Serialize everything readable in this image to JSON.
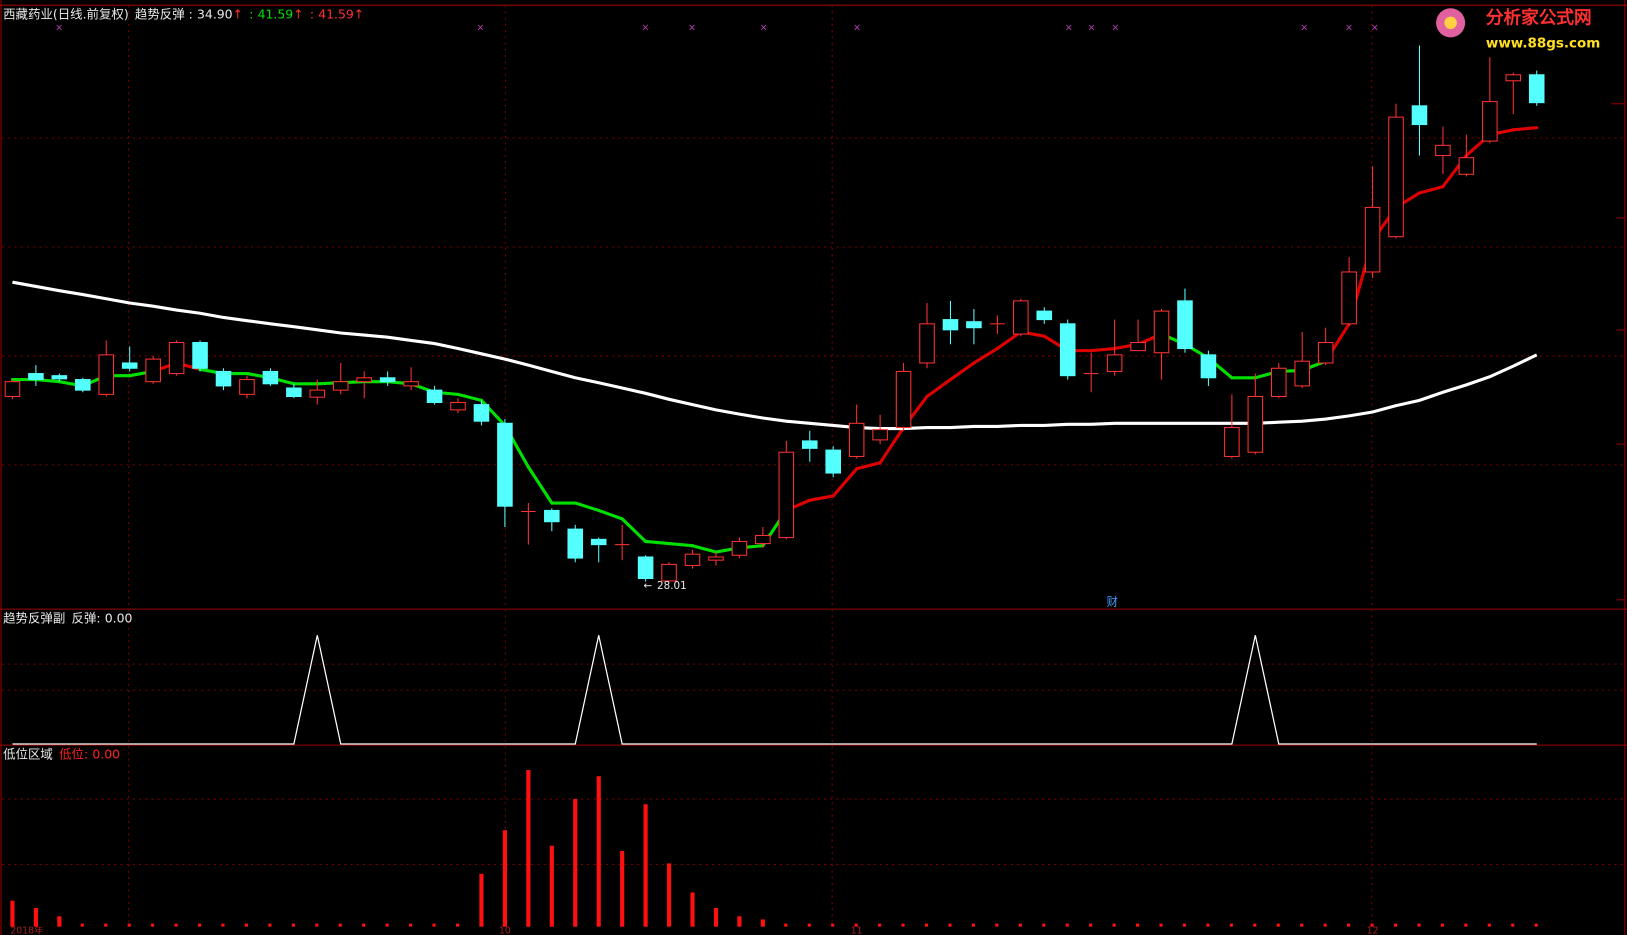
{
  "logo": {
    "name": "分析家公式网",
    "url": "www.88gs.com"
  },
  "chart_data": [
    {
      "type": "candlestick",
      "title": "西藏药业(日线.前复权)",
      "indicator": "趋势反弹 :",
      "separator": ":",
      "arrow": "↑",
      "header_values": [
        "34.90",
        "41.59",
        "41.59"
      ],
      "header_colors": [
        "#e8e8e8",
        "#00e000",
        "#ff3030"
      ],
      "annotation": "财",
      "categories": [
        "2018年",
        null,
        null,
        null,
        null,
        null,
        null,
        null,
        null,
        null,
        null,
        null,
        null,
        null,
        null,
        null,
        null,
        null,
        null,
        null,
        null,
        "10",
        null,
        null,
        null,
        null,
        null,
        null,
        null,
        null,
        null,
        null,
        null,
        null,
        null,
        null,
        "11",
        null,
        null,
        null,
        null,
        null,
        null,
        null,
        null,
        null,
        null,
        null,
        null,
        null,
        null,
        null,
        null,
        null,
        null,
        null,
        null,
        null,
        "12",
        null,
        null,
        null,
        null,
        null,
        null,
        null
      ],
      "ylim": [
        27.29,
        44.5
      ],
      "up_color": "#ff3232",
      "down_color": "#54ffff",
      "open": [
        33.26,
        33.91,
        33.85,
        33.74,
        33.32,
        34.21,
        33.68,
        33.91,
        34.79,
        33.97,
        33.32,
        33.97,
        33.5,
        33.24,
        33.44,
        33.68,
        33.79,
        33.56,
        33.44,
        32.88,
        33.03,
        32.5,
        30.0,
        30.03,
        29.5,
        29.21,
        29.06,
        28.71,
        28.03,
        28.47,
        28.62,
        28.76,
        29.09,
        29.26,
        32.0,
        31.74,
        31.56,
        32.03,
        32.38,
        34.21,
        35.44,
        35.38,
        35.32,
        35.03,
        35.68,
        35.32,
        33.91,
        33.97,
        34.56,
        34.5,
        35.97,
        34.44,
        31.56,
        31.68,
        33.26,
        33.56,
        34.21,
        35.32,
        36.79,
        37.79,
        41.5,
        40.09,
        39.56,
        40.5,
        42.21,
        42.38
      ],
      "close": [
        33.68,
        33.74,
        33.76,
        33.44,
        34.44,
        34.06,
        34.32,
        34.79,
        34.06,
        33.56,
        33.74,
        33.62,
        33.26,
        33.44,
        33.68,
        33.79,
        33.68,
        33.68,
        33.09,
        33.09,
        32.56,
        30.15,
        30.0,
        29.71,
        28.68,
        29.06,
        29.06,
        28.1,
        28.5,
        28.79,
        28.71,
        29.15,
        29.32,
        31.68,
        31.79,
        31.09,
        32.5,
        32.32,
        33.97,
        35.32,
        35.15,
        35.21,
        35.32,
        35.97,
        35.44,
        33.85,
        33.91,
        34.44,
        34.79,
        35.68,
        34.62,
        33.79,
        32.38,
        33.26,
        34.06,
        34.26,
        34.79,
        36.79,
        38.62,
        41.18,
        40.97,
        40.38,
        40.03,
        41.62,
        42.38,
        41.59
      ],
      "high": [
        33.74,
        34.15,
        33.91,
        33.79,
        34.85,
        34.68,
        34.41,
        34.85,
        34.85,
        34.06,
        33.85,
        34.06,
        33.62,
        33.74,
        34.21,
        33.97,
        33.97,
        34.09,
        33.56,
        33.21,
        33.15,
        32.62,
        30.24,
        30.09,
        29.62,
        29.26,
        29.62,
        28.76,
        28.56,
        28.91,
        28.85,
        29.26,
        29.56,
        32.0,
        32.29,
        31.85,
        33.03,
        32.74,
        34.21,
        35.91,
        35.97,
        35.74,
        35.56,
        36.03,
        35.79,
        35.44,
        34.5,
        35.44,
        35.44,
        35.74,
        36.32,
        34.56,
        33.32,
        33.91,
        34.21,
        35.09,
        35.21,
        37.21,
        39.79,
        41.56,
        43.21,
        40.91,
        40.68,
        42.88,
        42.44,
        42.5
      ],
      "low": [
        33.18,
        33.56,
        33.68,
        33.38,
        33.26,
        33.97,
        33.62,
        33.85,
        33.97,
        33.44,
        33.21,
        33.56,
        33.21,
        33.03,
        33.32,
        33.21,
        33.56,
        33.44,
        33.03,
        32.79,
        32.44,
        29.56,
        29.06,
        29.44,
        28.56,
        28.56,
        28.62,
        28.01,
        28.05,
        28.38,
        28.47,
        28.68,
        28.97,
        29.21,
        31.41,
        30.97,
        31.5,
        31.91,
        32.29,
        34.06,
        34.74,
        34.74,
        35.03,
        34.97,
        35.32,
        33.74,
        33.38,
        33.85,
        34.56,
        33.74,
        34.5,
        33.56,
        31.5,
        31.62,
        33.21,
        33.5,
        34.15,
        35.26,
        36.62,
        37.74,
        40.09,
        39.56,
        39.5,
        40.44,
        41.26,
        41.5
      ],
      "series": [
        {
          "values": [
            33.74,
            33.74,
            33.68,
            33.56,
            33.85,
            33.85,
            33.97,
            34.21,
            34.03,
            33.91,
            33.91,
            33.79,
            33.62,
            33.62,
            33.65,
            33.68,
            33.68,
            33.62,
            33.38,
            33.32,
            33.15,
            32.44,
            31.26,
            30.24,
            30.24,
            30.03,
            29.79,
            29.15,
            29.09,
            29.03,
            28.85,
            28.97,
            29.03,
            30.03,
            30.32,
            30.44,
            31.21,
            31.38,
            32.38,
            33.26,
            33.74,
            34.21,
            34.62,
            35.09,
            34.97,
            34.56,
            34.56,
            34.62,
            34.74,
            35.03,
            34.74,
            34.35,
            33.79,
            33.79,
            33.97,
            34.0,
            34.26,
            35.32,
            37.68,
            38.62,
            39.03,
            39.21,
            40.09,
            40.68,
            40.82,
            40.88
          ],
          "colors": [
            "#00e000",
            "#00e000",
            "#00e000",
            "#00e000",
            "#00e000",
            "#00e000",
            "#00e000",
            "#e00000",
            "#e00000",
            "#00e000",
            "#00e000",
            "#00e000",
            "#00e000",
            "#00e000",
            "#00e000",
            "#00e000",
            "#00e000",
            "#00e000",
            "#00e000",
            "#00e000",
            "#00e000",
            "#00e000",
            "#00e000",
            "#00e000",
            "#00e000",
            "#00e000",
            "#00e000",
            "#00e000",
            "#00e000",
            "#00e000",
            "#00e000",
            "#00e000",
            "#00e000",
            "#00e000",
            "#e00000",
            "#e00000",
            "#e00000",
            "#e00000",
            "#e00000",
            "#e00000",
            "#e00000",
            "#e00000",
            "#e00000",
            "#e00000",
            "#e00000",
            "#e00000",
            "#e00000",
            "#e00000",
            "#e00000",
            "#e00000",
            "#00e000",
            "#00e000",
            "#00e000",
            "#00e000",
            "#00e000",
            "#00e000",
            "#00e000",
            "#e00000",
            "#e00000",
            "#e00000",
            "#e00000",
            "#e00000",
            "#e00000",
            "#e00000",
            "#e00000",
            "#e00000"
          ]
        },
        {
          "color": "#ffffff",
          "values": [
            36.5,
            36.38,
            36.26,
            36.15,
            36.03,
            35.91,
            35.82,
            35.71,
            35.62,
            35.5,
            35.41,
            35.32,
            35.24,
            35.15,
            35.06,
            35.0,
            34.94,
            34.85,
            34.76,
            34.62,
            34.47,
            34.32,
            34.15,
            33.97,
            33.79,
            33.65,
            33.5,
            33.35,
            33.18,
            33.03,
            32.88,
            32.76,
            32.65,
            32.56,
            32.5,
            32.44,
            32.38,
            32.35,
            32.35,
            32.38,
            32.38,
            32.41,
            32.41,
            32.44,
            32.44,
            32.47,
            32.47,
            32.5,
            32.5,
            32.5,
            32.5,
            32.5,
            32.5,
            32.5,
            32.53,
            32.56,
            32.62,
            32.71,
            32.82,
            33.0,
            33.15,
            33.38,
            33.59,
            33.82,
            34.12,
            34.44
          ]
        }
      ]
    },
    {
      "type": "line",
      "title": "趋势反弹副",
      "label": "反弹:",
      "value_label": "0.00",
      "label_color": "#e8e8e8",
      "color": "#ffffff",
      "ylim": [
        0,
        1.23
      ],
      "values": [
        0,
        0,
        0,
        0,
        0,
        0,
        0,
        0,
        0,
        0,
        0,
        0,
        0,
        1,
        0,
        0,
        0,
        0,
        0,
        0,
        0,
        0,
        0,
        0,
        0,
        1,
        0,
        0,
        0,
        0,
        0,
        0,
        0,
        0,
        0,
        0,
        0,
        0,
        0,
        0,
        0,
        0,
        0,
        0,
        0,
        0,
        0,
        0,
        0,
        0,
        0,
        0,
        0,
        1,
        0,
        0,
        0,
        0,
        0,
        0,
        0,
        0,
        0,
        0,
        0,
        0
      ]
    },
    {
      "type": "bar",
      "title": "低位区域",
      "label": "低位:",
      "value_label": "0.00",
      "label_color": "#ff2020",
      "color": "#ff1010",
      "ylim": [
        0,
        17.4
      ],
      "values": [
        2.5,
        1.8,
        1.0,
        0,
        0,
        0,
        0,
        0,
        0,
        0,
        0,
        0,
        0,
        0,
        0,
        0,
        0,
        0,
        0,
        0,
        5.1,
        9.3,
        15.1,
        7.8,
        12.3,
        14.5,
        7.3,
        11.8,
        6.1,
        3.3,
        1.8,
        1.0,
        0.7,
        0,
        0,
        0,
        0,
        0,
        0,
        0,
        0,
        0,
        0,
        0,
        0,
        0,
        0,
        0,
        0,
        0,
        0,
        0,
        0,
        0,
        0,
        0,
        0,
        0,
        0,
        0,
        0,
        0,
        0,
        0,
        0,
        0
      ]
    }
  ]
}
